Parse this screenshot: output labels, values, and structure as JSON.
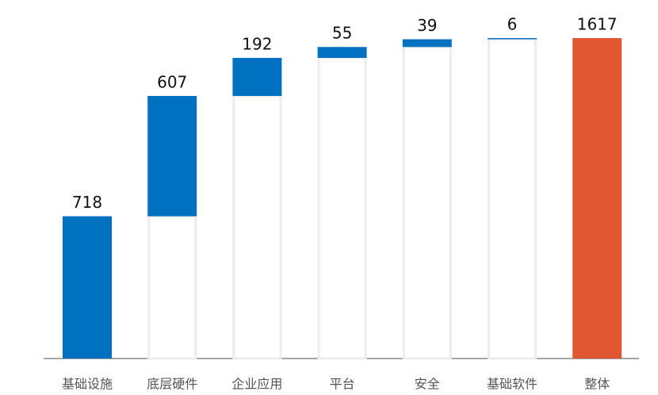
{
  "chart_data": {
    "type": "waterfall",
    "categories": [
      "基础设施",
      "底层硬件",
      "企业应用",
      "平台",
      "安全",
      "基础软件",
      "整体"
    ],
    "values": [
      718,
      607,
      192,
      55,
      39,
      6,
      1617
    ],
    "color": "#0070c0",
    "total_color": "#e05631",
    "last_is_total": true
  }
}
